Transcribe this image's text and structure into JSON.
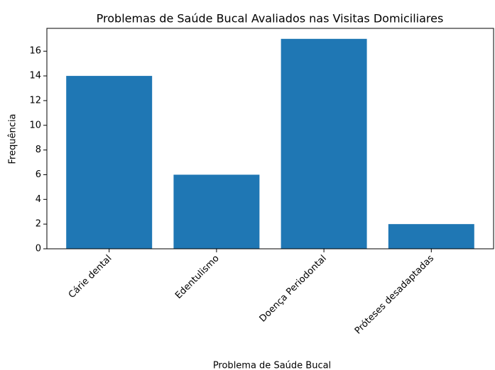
{
  "chart_data": {
    "type": "bar",
    "title": "Problemas de Saúde Bucal Avaliados nas Visitas Domiciliares",
    "x_label": "Problema de Saúde Bucal",
    "y_label": "Frequência",
    "categories": [
      "Cárie dental",
      "Edentulismo",
      "Doença Periodontal",
      "Próteses desadaptadas"
    ],
    "values": [
      14,
      6,
      17,
      2
    ],
    "color": "#1f77b4",
    "ylim": [
      0,
      17.85
    ],
    "yticks": [
      0,
      2,
      4,
      6,
      8,
      10,
      12,
      14,
      16
    ],
    "grid": false
  }
}
